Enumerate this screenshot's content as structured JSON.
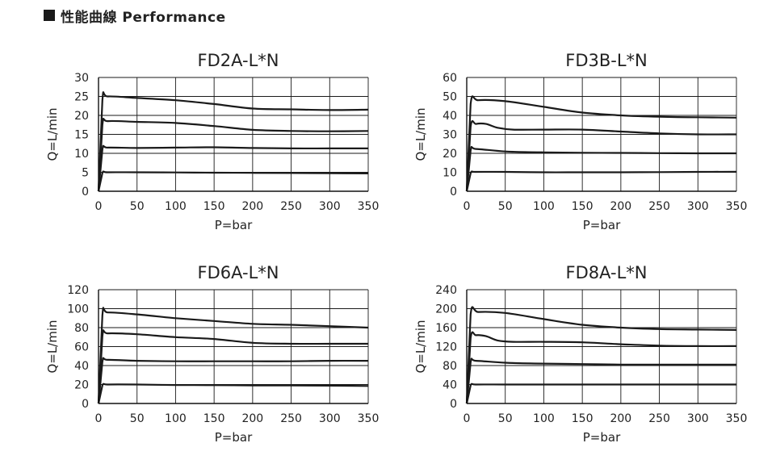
{
  "header": {
    "title": "性能曲線 Performance"
  },
  "chart_data": [
    {
      "type": "line",
      "title": "FD2A-L*N",
      "xlabel": "P=bar",
      "ylabel": "Q=L/min",
      "xlim": [
        0,
        350
      ],
      "ylim": [
        0,
        30
      ],
      "x_ticks": [
        0,
        50,
        100,
        150,
        200,
        250,
        300,
        350
      ],
      "y_ticks": [
        0,
        5,
        10,
        15,
        20,
        25,
        30
      ],
      "grid": true,
      "series": [
        {
          "x": [
            0,
            5,
            12,
            50,
            100,
            150,
            200,
            250,
            300,
            350
          ],
          "y": [
            0,
            24,
            25,
            24.6,
            24,
            23,
            21.8,
            21.6,
            21.4,
            21.5
          ]
        },
        {
          "x": [
            0,
            5,
            12,
            50,
            100,
            150,
            200,
            250,
            300,
            350
          ],
          "y": [
            0,
            17.5,
            18.5,
            18.3,
            18,
            17.2,
            16.2,
            15.9,
            15.8,
            15.9
          ]
        },
        {
          "x": [
            0,
            5,
            12,
            50,
            100,
            150,
            200,
            250,
            300,
            350
          ],
          "y": [
            0,
            11,
            11.5,
            11.4,
            11.5,
            11.6,
            11.4,
            11.3,
            11.3,
            11.3
          ]
        },
        {
          "x": [
            0,
            5,
            12,
            50,
            100,
            150,
            200,
            250,
            300,
            350
          ],
          "y": [
            0,
            4.8,
            5,
            5,
            4.95,
            4.9,
            4.85,
            4.8,
            4.75,
            4.7
          ]
        }
      ]
    },
    {
      "type": "line",
      "title": "FD3B-L*N",
      "xlabel": "P=bar",
      "ylabel": "Q=L/min",
      "xlim": [
        0,
        350
      ],
      "ylim": [
        0,
        60
      ],
      "x_ticks": [
        0,
        50,
        100,
        150,
        200,
        250,
        300,
        350
      ],
      "y_ticks": [
        0,
        10,
        20,
        30,
        40,
        50,
        60
      ],
      "grid": true,
      "series": [
        {
          "x": [
            0,
            5,
            15,
            50,
            100,
            150,
            200,
            250,
            300,
            350
          ],
          "y": [
            0,
            46,
            48,
            47.5,
            44.5,
            41.5,
            40,
            39.3,
            39,
            38.8
          ]
        },
        {
          "x": [
            0,
            5,
            12,
            25,
            40,
            60,
            100,
            150,
            200,
            250,
            300,
            350
          ],
          "y": [
            0,
            34,
            35.5,
            35.5,
            33.5,
            32.5,
            32.5,
            32.5,
            31.5,
            30.5,
            30,
            30
          ]
        },
        {
          "x": [
            0,
            5,
            12,
            50,
            100,
            150,
            200,
            250,
            300,
            350
          ],
          "y": [
            0,
            21.5,
            22.3,
            21,
            20.5,
            20.3,
            20.2,
            20.1,
            20,
            20
          ]
        },
        {
          "x": [
            0,
            5,
            12,
            50,
            100,
            150,
            200,
            250,
            300,
            350
          ],
          "y": [
            0,
            9.5,
            10.2,
            10.2,
            10,
            10,
            10,
            10.1,
            10.2,
            10.3
          ]
        }
      ]
    },
    {
      "type": "line",
      "title": "FD6A-L*N",
      "xlabel": "P=bar",
      "ylabel": "Q=L/min",
      "xlim": [
        0,
        350
      ],
      "ylim": [
        0,
        120
      ],
      "x_ticks": [
        0,
        50,
        100,
        150,
        200,
        250,
        300,
        350
      ],
      "y_ticks": [
        0,
        20,
        40,
        60,
        80,
        100,
        120
      ],
      "grid": true,
      "series": [
        {
          "x": [
            0,
            5,
            12,
            50,
            100,
            150,
            200,
            250,
            300,
            350
          ],
          "y": [
            0,
            93,
            96,
            94,
            90,
            87,
            84,
            83,
            81.5,
            80
          ]
        },
        {
          "x": [
            0,
            5,
            12,
            50,
            100,
            150,
            200,
            250,
            300,
            350
          ],
          "y": [
            0,
            71,
            74,
            73,
            70,
            68,
            64,
            63,
            63,
            63
          ]
        },
        {
          "x": [
            0,
            5,
            12,
            50,
            100,
            150,
            200,
            250,
            300,
            350
          ],
          "y": [
            0,
            44,
            46,
            45,
            44.5,
            44.5,
            44.5,
            44.5,
            45,
            45
          ]
        },
        {
          "x": [
            0,
            5,
            12,
            50,
            100,
            150,
            200,
            250,
            300,
            350
          ],
          "y": [
            0,
            19,
            20,
            20,
            19.5,
            19.3,
            19.1,
            19,
            18.8,
            18.5
          ]
        }
      ]
    },
    {
      "type": "line",
      "title": "FD8A-L*N",
      "xlabel": "P=bar",
      "ylabel": "Q=L/min",
      "xlim": [
        0,
        350
      ],
      "ylim": [
        0,
        240
      ],
      "x_ticks": [
        0,
        50,
        100,
        150,
        200,
        250,
        300,
        350
      ],
      "y_ticks": [
        0,
        40,
        80,
        120,
        160,
        200,
        240
      ],
      "grid": true,
      "series": [
        {
          "x": [
            0,
            5,
            15,
            50,
            100,
            150,
            200,
            250,
            300,
            350
          ],
          "y": [
            0,
            188,
            193,
            191,
            178,
            166,
            160,
            157,
            156,
            155
          ]
        },
        {
          "x": [
            0,
            5,
            12,
            25,
            40,
            60,
            100,
            150,
            200,
            250,
            300,
            350
          ],
          "y": [
            0,
            138,
            144,
            142,
            133,
            130,
            130,
            129,
            125,
            122,
            121,
            121
          ]
        },
        {
          "x": [
            0,
            5,
            12,
            50,
            100,
            150,
            200,
            250,
            300,
            350
          ],
          "y": [
            0,
            87,
            90,
            86,
            84,
            83,
            82,
            82,
            82,
            82
          ]
        },
        {
          "x": [
            0,
            5,
            12,
            50,
            100,
            150,
            200,
            250,
            300,
            350
          ],
          "y": [
            0,
            38,
            40,
            40,
            40,
            40,
            40,
            40,
            40,
            40
          ]
        }
      ]
    }
  ]
}
